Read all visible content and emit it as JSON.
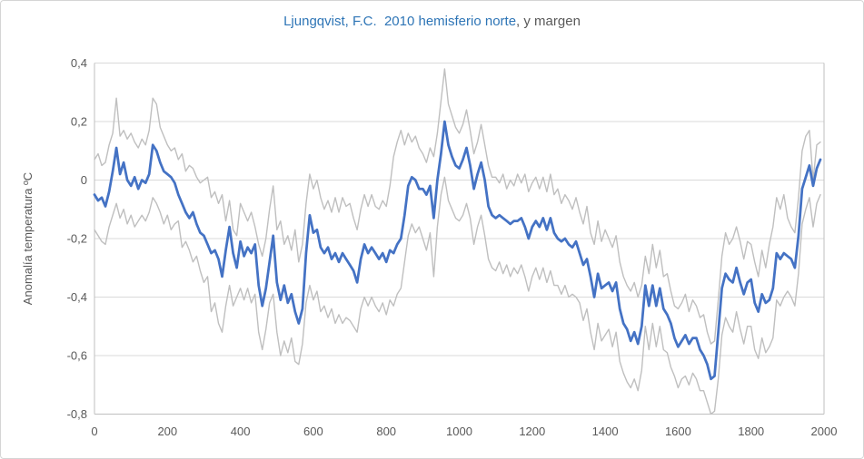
{
  "title": {
    "highlight": "Ljungqvist, F.C.  2010 hemisferio norte",
    "suffix": ", y margen"
  },
  "colors": {
    "title_highlight": "#2e75b6",
    "title_suffix": "#595959",
    "reconstruction_line": "#4472c4",
    "margin_lines": "#bfbfbf",
    "gridlines": "#d9d9d9",
    "tick_text": "#595959"
  },
  "chart_data": {
    "type": "line",
    "title": "Ljungqvist, F.C.  2010 hemisferio norte, y margen",
    "xlabel": "",
    "ylabel": "Anomalía temperatura ºC",
    "xlim": [
      0,
      2000
    ],
    "ylim": [
      -0.8,
      0.4
    ],
    "grid": "horizontal",
    "legend": "none",
    "x_start": 0,
    "x_step": 10,
    "n_points": 200,
    "xtick_labels": [
      "0",
      "200",
      "400",
      "600",
      "800",
      "1000",
      "1200",
      "1400",
      "1600",
      "1800",
      "2000"
    ],
    "ytick_labels": [
      "0,4",
      "0,2",
      "0",
      "-0,2",
      "-0,4",
      "-0,6",
      "-0,8"
    ],
    "series": [
      {
        "name": "margin-upper",
        "color": "#bfbfbf",
        "values": [
          0.07,
          0.09,
          0.05,
          0.06,
          0.12,
          0.16,
          0.28,
          0.15,
          0.17,
          0.14,
          0.16,
          0.13,
          0.11,
          0.14,
          0.12,
          0.17,
          0.28,
          0.26,
          0.18,
          0.15,
          0.12,
          0.1,
          0.11,
          0.07,
          0.09,
          0.03,
          0.05,
          0.04,
          0.01,
          -0.01,
          0.0,
          0.01,
          -0.06,
          -0.04,
          -0.08,
          -0.05,
          -0.14,
          -0.07,
          -0.17,
          -0.19,
          -0.08,
          -0.11,
          -0.14,
          -0.11,
          -0.16,
          -0.22,
          -0.26,
          -0.2,
          -0.1,
          -0.02,
          -0.17,
          -0.14,
          -0.22,
          -0.19,
          -0.24,
          -0.17,
          -0.28,
          -0.22,
          -0.08,
          0.02,
          -0.03,
          0.0,
          -0.06,
          -0.1,
          -0.07,
          -0.11,
          -0.06,
          -0.11,
          -0.06,
          -0.09,
          -0.08,
          -0.13,
          -0.17,
          -0.1,
          -0.05,
          -0.09,
          -0.05,
          -0.09,
          -0.1,
          -0.07,
          -0.09,
          -0.02,
          0.08,
          0.13,
          0.17,
          0.12,
          0.16,
          0.13,
          0.15,
          0.11,
          0.09,
          0.06,
          0.11,
          0.08,
          0.16,
          0.27,
          0.38,
          0.26,
          0.22,
          0.18,
          0.16,
          0.19,
          0.24,
          0.17,
          0.09,
          0.13,
          0.19,
          0.12,
          0.05,
          0.01,
          0.01,
          -0.01,
          0.02,
          -0.03,
          0.0,
          -0.02,
          0.02,
          -0.01,
          0.02,
          -0.04,
          -0.01,
          0.01,
          -0.03,
          0.01,
          -0.04,
          0.02,
          -0.05,
          -0.03,
          -0.08,
          -0.05,
          -0.07,
          -0.1,
          -0.06,
          -0.11,
          -0.15,
          -0.09,
          -0.18,
          -0.22,
          -0.14,
          -0.21,
          -0.17,
          -0.2,
          -0.23,
          -0.19,
          -0.28,
          -0.33,
          -0.36,
          -0.38,
          -0.35,
          -0.4,
          -0.36,
          -0.26,
          -0.32,
          -0.22,
          -0.3,
          -0.24,
          -0.33,
          -0.32,
          -0.38,
          -0.43,
          -0.44,
          -0.42,
          -0.39,
          -0.45,
          -0.41,
          -0.43,
          -0.47,
          -0.46,
          -0.52,
          -0.56,
          -0.55,
          -0.41,
          -0.26,
          -0.18,
          -0.22,
          -0.2,
          -0.16,
          -0.21,
          -0.27,
          -0.21,
          -0.22,
          -0.28,
          -0.33,
          -0.24,
          -0.3,
          -0.22,
          -0.16,
          -0.06,
          -0.1,
          -0.05,
          -0.13,
          -0.16,
          -0.18,
          -0.06,
          0.1,
          0.15,
          0.17,
          0.0,
          0.12,
          0.13
        ]
      },
      {
        "name": "margin-lower",
        "color": "#bfbfbf",
        "values": [
          -0.17,
          -0.19,
          -0.21,
          -0.22,
          -0.16,
          -0.12,
          -0.08,
          -0.13,
          -0.1,
          -0.15,
          -0.12,
          -0.16,
          -0.14,
          -0.12,
          -0.14,
          -0.11,
          -0.06,
          -0.08,
          -0.11,
          -0.15,
          -0.12,
          -0.17,
          -0.15,
          -0.14,
          -0.23,
          -0.21,
          -0.24,
          -0.28,
          -0.26,
          -0.31,
          -0.35,
          -0.33,
          -0.45,
          -0.42,
          -0.49,
          -0.52,
          -0.43,
          -0.36,
          -0.43,
          -0.4,
          -0.37,
          -0.41,
          -0.37,
          -0.42,
          -0.39,
          -0.52,
          -0.58,
          -0.51,
          -0.42,
          -0.39,
          -0.52,
          -0.6,
          -0.55,
          -0.59,
          -0.54,
          -0.62,
          -0.63,
          -0.56,
          -0.42,
          -0.36,
          -0.41,
          -0.38,
          -0.45,
          -0.43,
          -0.47,
          -0.44,
          -0.49,
          -0.46,
          -0.49,
          -0.47,
          -0.48,
          -0.5,
          -0.52,
          -0.44,
          -0.4,
          -0.43,
          -0.4,
          -0.43,
          -0.45,
          -0.42,
          -0.46,
          -0.41,
          -0.43,
          -0.39,
          -0.37,
          -0.28,
          -0.19,
          -0.15,
          -0.18,
          -0.16,
          -0.2,
          -0.24,
          -0.18,
          -0.33,
          -0.16,
          -0.05,
          0.01,
          -0.07,
          -0.1,
          -0.13,
          -0.14,
          -0.12,
          -0.08,
          -0.13,
          -0.22,
          -0.16,
          -0.12,
          -0.19,
          -0.27,
          -0.3,
          -0.31,
          -0.28,
          -0.32,
          -0.29,
          -0.33,
          -0.3,
          -0.32,
          -0.29,
          -0.33,
          -0.38,
          -0.33,
          -0.3,
          -0.34,
          -0.3,
          -0.35,
          -0.31,
          -0.36,
          -0.36,
          -0.39,
          -0.36,
          -0.4,
          -0.39,
          -0.4,
          -0.42,
          -0.48,
          -0.44,
          -0.52,
          -0.58,
          -0.49,
          -0.55,
          -0.53,
          -0.51,
          -0.57,
          -0.52,
          -0.62,
          -0.66,
          -0.69,
          -0.71,
          -0.68,
          -0.72,
          -0.65,
          -0.5,
          -0.58,
          -0.49,
          -0.57,
          -0.5,
          -0.58,
          -0.59,
          -0.64,
          -0.67,
          -0.71,
          -0.68,
          -0.67,
          -0.7,
          -0.66,
          -0.68,
          -0.72,
          -0.72,
          -0.76,
          -0.8,
          -0.79,
          -0.68,
          -0.53,
          -0.47,
          -0.5,
          -0.52,
          -0.45,
          -0.51,
          -0.56,
          -0.5,
          -0.5,
          -0.58,
          -0.61,
          -0.54,
          -0.59,
          -0.57,
          -0.54,
          -0.41,
          -0.43,
          -0.4,
          -0.38,
          -0.4,
          -0.43,
          -0.32,
          -0.15,
          -0.1,
          -0.06,
          -0.16,
          -0.08,
          -0.05
        ]
      },
      {
        "name": "reconstruction",
        "color": "#4472c4",
        "values": [
          -0.05,
          -0.07,
          -0.06,
          -0.09,
          -0.04,
          0.03,
          0.11,
          0.02,
          0.06,
          0.0,
          -0.02,
          0.01,
          -0.03,
          0.0,
          -0.01,
          0.02,
          0.12,
          0.1,
          0.06,
          0.03,
          0.02,
          0.01,
          -0.01,
          -0.05,
          -0.08,
          -0.11,
          -0.13,
          -0.11,
          -0.15,
          -0.18,
          -0.19,
          -0.22,
          -0.25,
          -0.24,
          -0.27,
          -0.33,
          -0.24,
          -0.16,
          -0.25,
          -0.3,
          -0.21,
          -0.26,
          -0.23,
          -0.25,
          -0.22,
          -0.36,
          -0.43,
          -0.37,
          -0.28,
          -0.19,
          -0.35,
          -0.41,
          -0.36,
          -0.42,
          -0.39,
          -0.45,
          -0.49,
          -0.44,
          -0.25,
          -0.12,
          -0.18,
          -0.17,
          -0.23,
          -0.25,
          -0.23,
          -0.27,
          -0.25,
          -0.28,
          -0.25,
          -0.27,
          -0.29,
          -0.31,
          -0.35,
          -0.27,
          -0.22,
          -0.25,
          -0.23,
          -0.25,
          -0.27,
          -0.25,
          -0.28,
          -0.24,
          -0.25,
          -0.22,
          -0.2,
          -0.12,
          -0.02,
          0.01,
          0.0,
          -0.03,
          -0.03,
          -0.05,
          -0.02,
          -0.13,
          0.0,
          0.09,
          0.2,
          0.12,
          0.08,
          0.05,
          0.04,
          0.07,
          0.11,
          0.05,
          -0.03,
          0.02,
          0.06,
          0.0,
          -0.09,
          -0.12,
          -0.13,
          -0.12,
          -0.13,
          -0.14,
          -0.15,
          -0.14,
          -0.14,
          -0.13,
          -0.16,
          -0.2,
          -0.16,
          -0.14,
          -0.16,
          -0.13,
          -0.17,
          -0.13,
          -0.18,
          -0.2,
          -0.21,
          -0.2,
          -0.22,
          -0.23,
          -0.21,
          -0.25,
          -0.29,
          -0.27,
          -0.33,
          -0.4,
          -0.32,
          -0.37,
          -0.36,
          -0.35,
          -0.38,
          -0.35,
          -0.44,
          -0.49,
          -0.51,
          -0.55,
          -0.52,
          -0.56,
          -0.5,
          -0.36,
          -0.43,
          -0.36,
          -0.43,
          -0.37,
          -0.44,
          -0.46,
          -0.49,
          -0.54,
          -0.57,
          -0.55,
          -0.53,
          -0.56,
          -0.54,
          -0.54,
          -0.58,
          -0.6,
          -0.63,
          -0.68,
          -0.67,
          -0.52,
          -0.37,
          -0.32,
          -0.34,
          -0.35,
          -0.3,
          -0.35,
          -0.39,
          -0.35,
          -0.34,
          -0.42,
          -0.45,
          -0.39,
          -0.42,
          -0.41,
          -0.37,
          -0.25,
          -0.27,
          -0.25,
          -0.26,
          -0.27,
          -0.3,
          -0.19,
          -0.03,
          0.01,
          0.05,
          -0.02,
          0.04,
          0.07
        ]
      }
    ]
  }
}
